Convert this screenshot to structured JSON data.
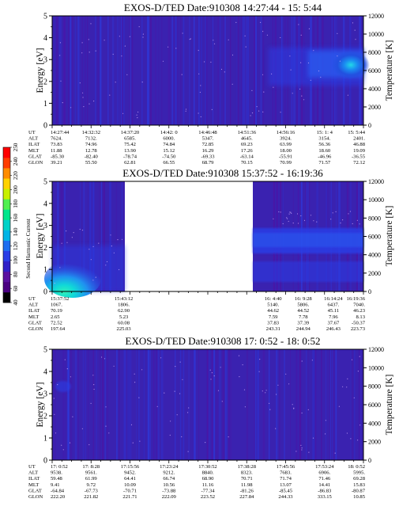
{
  "colorbar": {
    "label": "Second Harmonic Current",
    "ticks": [
      "40",
      "60",
      "80",
      "100",
      "120",
      "140",
      "160",
      "180",
      "200",
      "220",
      "240",
      "250"
    ],
    "colors": [
      "#000000",
      "#4b0082",
      "#5a10a0",
      "#3020c8",
      "#2a3ee6",
      "#1e6ef0",
      "#00b4e6",
      "#00d2c8",
      "#00e68c",
      "#50f050",
      "#c8f000",
      "#ffd200",
      "#ff8c00",
      "#ff3c00",
      "#ff0000"
    ]
  },
  "row_labels": [
    "UT",
    "ALT",
    "ILAT",
    "MLT",
    "GLAT",
    "GLON"
  ],
  "chart_data": [
    {
      "type": "heatmap",
      "title": "EXOS-D/TED  Date:910308  14:27:44 - 15: 5:44",
      "ylabel": "Energy [eV]",
      "ylabel_right": "Temperature [K]",
      "ylim": [
        0,
        5
      ],
      "ylim_right": [
        0,
        12000
      ],
      "yticks": [
        "0",
        "1",
        "2",
        "3",
        "4",
        "5"
      ],
      "yticks_right": [
        "0",
        "2000",
        "4000",
        "6000",
        "8000",
        "10000",
        "12000"
      ],
      "data_coverage": [
        [
          0,
          1
        ]
      ],
      "columns": [
        {
          "UT": "14:27:44",
          "ALT": "7624.",
          "ILAT": "73.83",
          "MLT": "11.88",
          "GLAT": "-85.30",
          "GLON": "39.21"
        },
        {
          "UT": "14:32:32",
          "ALT": "7132.",
          "ILAT": "74.96",
          "MLT": "12.78",
          "GLAT": "-82.40",
          "GLON": "55.50"
        },
        {
          "UT": "14:37:20",
          "ALT": "6585.",
          "ILAT": "75.42",
          "MLT": "13.90",
          "GLAT": "-78.74",
          "GLON": "62.81"
        },
        {
          "UT": "14:42: 0",
          "ALT": "6000.",
          "ILAT": "74.84",
          "MLT": "15.12",
          "GLAT": "-74.50",
          "GLON": "66.55"
        },
        {
          "UT": "14:46:48",
          "ALT": "5347.",
          "ILAT": "72.85",
          "MLT": "16.29",
          "GLAT": "-69.33",
          "GLON": "68.79"
        },
        {
          "UT": "14:51:36",
          "ALT": "4645.",
          "ILAT": "69.23",
          "MLT": "17.26",
          "GLAT": "-63.14",
          "GLON": "70.15"
        },
        {
          "UT": "14:56:16",
          "ALT": "3924.",
          "ILAT": "63.99",
          "MLT": "18.00",
          "GLAT": "-55.91",
          "GLON": "70.99"
        },
        {
          "UT": "15: 1: 4",
          "ALT": "3154.",
          "ILAT": "56.36",
          "MLT": "18.60",
          "GLAT": "-46.96",
          "GLON": "71.57"
        },
        {
          "UT": "15: 5:44",
          "ALT": "2401.",
          "ILAT": "46.88",
          "MLT": "19.09",
          "GLAT": "-36.55",
          "GLON": "72.12"
        }
      ]
    },
    {
      "type": "heatmap",
      "title": "EXOS-D/TED  Date:910308  15:37:52 - 16:19:36",
      "ylabel": "Energy [eV]",
      "ylabel_right": "Temperature [K]",
      "ylim": [
        0,
        5
      ],
      "ylim_right": [
        0,
        12000
      ],
      "yticks": [
        "0",
        "1",
        "2",
        "3",
        "4",
        "5"
      ],
      "yticks_right": [
        "0",
        "2000",
        "4000",
        "6000",
        "8000",
        "10000",
        "12000"
      ],
      "data_coverage": [
        [
          0,
          0.23
        ],
        [
          0.71,
          1
        ]
      ],
      "columns": [
        {
          "UT": "15:37:52",
          "ALT": "1067.",
          "ILAT": "70.19",
          "MLT": "2.65",
          "GLAT": "72.52",
          "GLON": "197.64"
        },
        {
          "UT": "15:43:12",
          "ALT": "1806.",
          "ILAT": "62.90",
          "MLT": "5.23",
          "GLAT": "60.08",
          "GLON": "225.03"
        },
        {
          "UT": "16: 4:40",
          "ALT": "5140.",
          "ILAT": "44.62",
          "MLT": "7.59",
          "GLAT": "37.83",
          "GLON": "243.31"
        },
        {
          "UT": "16: 9:28",
          "ALT": "5806.",
          "ILAT": "44.52",
          "MLT": "7.78",
          "GLAT": "37.39",
          "GLON": "244.94"
        },
        {
          "UT": "16:14:24",
          "ALT": "6437.",
          "ILAT": "45.11",
          "MLT": "7.96",
          "GLAT": "37.67",
          "GLON": "246.43"
        },
        {
          "UT": "16:19:36",
          "ALT": "7040.",
          "ILAT": "46.23",
          "MLT": "8.13",
          "GLAT": "-50.37",
          "GLON": "223.73"
        }
      ]
    },
    {
      "type": "heatmap",
      "title": "EXOS-D/TED  Date:910308  17: 0:52 - 18: 0:52",
      "ylabel": "Energy [eV]",
      "ylabel_right": "Temperature [K]",
      "ylim": [
        0,
        5
      ],
      "ylim_right": [
        0,
        12000
      ],
      "yticks": [
        "0",
        "1",
        "2",
        "3",
        "4",
        "5"
      ],
      "yticks_right": [
        "0",
        "2000",
        "4000",
        "6000",
        "8000",
        "10000",
        "12000"
      ],
      "data_coverage": [
        [
          0,
          1
        ]
      ],
      "columns": [
        {
          "UT": "17: 0:52",
          "ALT": "9538.",
          "ILAT": "59.48",
          "MLT": "9.41",
          "GLAT": "-64.84",
          "GLON": "222.20"
        },
        {
          "UT": "17: 8:28",
          "ALT": "9561.",
          "ILAT": "61.99",
          "MLT": "9.72",
          "GLAT": "-67.73",
          "GLON": "221.82"
        },
        {
          "UT": "17:15:56",
          "ALT": "9452.",
          "ILAT": "64.41",
          "MLT": "10.09",
          "GLAT": "-70.71",
          "GLON": "221.71"
        },
        {
          "UT": "17:23:24",
          "ALT": "9212.",
          "ILAT": "66.74",
          "MLT": "10.56",
          "GLAT": "-73.88",
          "GLON": "222.09"
        },
        {
          "UT": "17:30:52",
          "ALT": "8840.",
          "ILAT": "68.90",
          "MLT": "11.16",
          "GLAT": "-77.34",
          "GLON": "223.52"
        },
        {
          "UT": "17:38:28",
          "ALT": "8323.",
          "ILAT": "70.71",
          "MLT": "11.98",
          "GLAT": "-81.26",
          "GLON": "227.84"
        },
        {
          "UT": "17:45:56",
          "ALT": "7683.",
          "ILAT": "71.74",
          "MLT": "13.07",
          "GLAT": "-85.45",
          "GLON": "244.33"
        },
        {
          "UT": "17:53:24",
          "ALT": "6906.",
          "ILAT": "71.46",
          "MLT": "14.41",
          "GLAT": "-86.83",
          "GLON": "333.15"
        },
        {
          "UT": "18: 0:52",
          "ALT": "5995.",
          "ILAT": "69.28",
          "MLT": "15.83",
          "GLAT": "-80.87",
          "GLON": "10.85"
        }
      ]
    }
  ]
}
